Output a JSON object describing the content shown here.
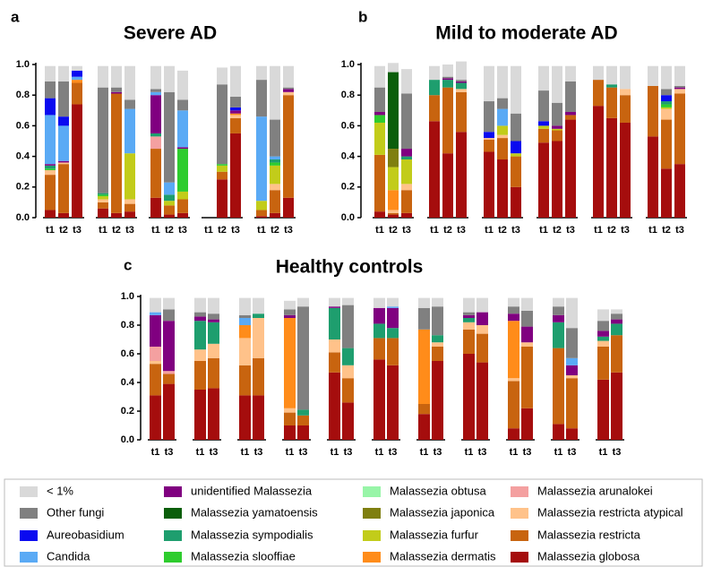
{
  "legend": [
    {
      "name": "< 1%",
      "color": "#d9d9d9"
    },
    {
      "name": "Other fungi",
      "color": "#808080"
    },
    {
      "name": "Aureobasidium",
      "color": "#0a0af0"
    },
    {
      "name": "Candida",
      "color": "#5aaaf5"
    },
    {
      "name": "unidentified Malassezia",
      "color": "#800080"
    },
    {
      "name": "Malassezia yamatoensis",
      "color": "#0b5e0b"
    },
    {
      "name": "Malassezia sympodialis",
      "color": "#1e9e6e"
    },
    {
      "name": "Malassezia slooffiae",
      "color": "#2ecc2e"
    },
    {
      "name": "Malassezia obtusa",
      "color": "#98f5a8"
    },
    {
      "name": "Malassezia japonica",
      "color": "#7f7f10"
    },
    {
      "name": "Malassezia furfur",
      "color": "#c2cc1a"
    },
    {
      "name": "Malassezia dermatis",
      "color": "#ff8c1a"
    },
    {
      "name": "Malassezia arunalokei",
      "color": "#f4a0a0"
    },
    {
      "name": "Malassezia restricta atypical",
      "color": "#ffc28a"
    },
    {
      "name": "Malassezia restricta",
      "color": "#c8640f"
    },
    {
      "name": "Malassezia globosa",
      "color": "#a50d0d"
    }
  ],
  "chart_data": [
    {
      "type": "bar",
      "stacked": true,
      "panel": "a",
      "title": "Severe AD",
      "categories": [
        "t1",
        "t2",
        "t3",
        "t1",
        "t2",
        "t3",
        "t1",
        "t2",
        "t3",
        "t1",
        "t2",
        "t3",
        "t1",
        "t2",
        "t3"
      ],
      "ylim": [
        0,
        1
      ],
      "yticks": [
        {
          "value": 0,
          "label": "0.0"
        },
        0.2,
        0.4,
        0.6,
        0.8,
        {
          "value": 1,
          "label": "1.0"
        }
      ],
      "series": [
        {
          "name": "Malassezia globosa",
          "values": [
            0.05,
            0.03,
            0.74,
            0.06,
            0.03,
            0.04,
            0.13,
            0.02,
            0.03,
            null,
            0.25,
            0.55,
            0.01,
            0.03,
            0.13
          ]
        },
        {
          "name": "Malassezia restricta",
          "values": [
            0.23,
            0.32,
            0.14,
            0.04,
            0.78,
            0.05,
            0.32,
            0.06,
            0.09,
            null,
            0.05,
            0.1,
            0.04,
            0.15,
            0.67
          ]
        },
        {
          "name": "Malassezia restricta atypical",
          "values": [
            0.03,
            0.01,
            0,
            0.02,
            0,
            0.03,
            0,
            0,
            0,
            null,
            0,
            0.02,
            0,
            0.04,
            0.02
          ]
        },
        {
          "name": "Malassezia dermatis",
          "values": [
            0,
            0,
            0.02,
            0,
            0,
            0,
            0,
            0,
            0,
            null,
            0,
            0.01,
            0,
            0,
            0
          ]
        },
        {
          "name": "Malassezia arunalokei",
          "values": [
            0,
            0,
            0,
            0,
            0,
            0,
            0.08,
            0,
            0,
            null,
            0,
            0,
            0,
            0,
            0
          ]
        },
        {
          "name": "Malassezia furfur",
          "values": [
            0,
            0,
            0,
            0.02,
            0,
            0.3,
            0,
            0.03,
            0.05,
            null,
            0.04,
            0,
            0.06,
            0.12,
            0
          ]
        },
        {
          "name": "Malassezia slooffiae",
          "values": [
            0.01,
            0,
            0,
            0.01,
            0,
            0,
            0,
            0,
            0.28,
            null,
            0.01,
            0,
            0,
            0.02,
            0
          ]
        },
        {
          "name": "Malassezia sympodialis",
          "values": [
            0.02,
            0,
            0,
            0.01,
            0,
            0,
            0.02,
            0.04,
            0,
            null,
            0,
            0,
            0,
            0.02,
            0
          ]
        },
        {
          "name": "unidentified Malassezia",
          "values": [
            0.01,
            0.01,
            0,
            0,
            0.01,
            0,
            0.25,
            0,
            0.01,
            null,
            0,
            0.02,
            0,
            0,
            0.02
          ]
        },
        {
          "name": "Candida",
          "values": [
            0.32,
            0.23,
            0.02,
            0,
            0,
            0.29,
            0.02,
            0.08,
            0.24,
            null,
            0,
            0,
            0.55,
            0.02,
            0
          ]
        },
        {
          "name": "Aureobasidium",
          "values": [
            0.11,
            0.06,
            0.04,
            0,
            0,
            0,
            0,
            0,
            0,
            null,
            0,
            0.02,
            0,
            0,
            0
          ]
        },
        {
          "name": "Other fungi",
          "values": [
            0.11,
            0.23,
            0,
            0.69,
            0.03,
            0.06,
            0.02,
            0.59,
            0.07,
            null,
            0.52,
            0.07,
            0.24,
            0.24,
            0.01
          ]
        },
        {
          "name": "< 1%",
          "values": [
            0.1,
            0.1,
            0.03,
            0.14,
            0.14,
            0.22,
            0.15,
            0.17,
            0.19,
            null,
            0.11,
            0.2,
            0.09,
            0.35,
            0.14
          ]
        }
      ]
    },
    {
      "type": "bar",
      "stacked": true,
      "panel": "b",
      "title": "Mild to moderate AD",
      "categories": [
        "t1",
        "t2",
        "t3",
        "t1",
        "t2",
        "t3",
        "t1",
        "t2",
        "t3",
        "t1",
        "t2",
        "t3",
        "t1",
        "t2",
        "t3",
        "t1",
        "t2",
        "t3"
      ],
      "ylim": [
        0,
        1
      ],
      "yticks": [
        {
          "value": 0,
          "label": "0.0"
        },
        0.2,
        0.4,
        0.6,
        0.8,
        {
          "value": 1,
          "label": "1.0"
        }
      ],
      "series": [
        {
          "name": "Malassezia globosa",
          "values": [
            0.04,
            0.02,
            0.03,
            0.63,
            0.42,
            0.56,
            0.43,
            0.38,
            0.2,
            0.49,
            0.5,
            0.64,
            0.73,
            0.65,
            0.62,
            0.53,
            0.32,
            0.35
          ]
        },
        {
          "name": "Malassezia restricta",
          "values": [
            0.37,
            0.01,
            0.15,
            0.17,
            0.43,
            0.26,
            0.08,
            0.14,
            0.2,
            0.09,
            0.07,
            0.03,
            0.17,
            0.2,
            0.18,
            0.33,
            0.32,
            0.46
          ]
        },
        {
          "name": "Malassezia restricta atypical",
          "values": [
            0,
            0.02,
            0.04,
            0,
            0,
            0.02,
            0.01,
            0.02,
            0,
            0,
            0,
            0,
            0,
            0,
            0.04,
            0,
            0.07,
            0.03
          ]
        },
        {
          "name": "Malassezia dermatis",
          "values": [
            0,
            0.13,
            0,
            0,
            0,
            0,
            0,
            0,
            0,
            0,
            0,
            0,
            0,
            0,
            0,
            0,
            0,
            0
          ]
        },
        {
          "name": "Malassezia furfur",
          "values": [
            0.21,
            0.15,
            0.16,
            0,
            0,
            0,
            0,
            0.06,
            0.02,
            0.02,
            0.01,
            0,
            0,
            0,
            0,
            0,
            0.01,
            0
          ]
        },
        {
          "name": "Malassezia japonica",
          "values": [
            0,
            0.12,
            0,
            0,
            0,
            0,
            0,
            0,
            0,
            0,
            0,
            0,
            0,
            0,
            0,
            0,
            0,
            0
          ]
        },
        {
          "name": "Malassezia yamatoensis",
          "values": [
            0,
            0.5,
            0,
            0,
            0,
            0,
            0,
            0,
            0,
            0,
            0,
            0,
            0,
            0,
            0,
            0,
            0,
            0
          ]
        },
        {
          "name": "Malassezia slooffiae",
          "values": [
            0.05,
            0,
            0,
            0,
            0,
            0,
            0,
            0,
            0,
            0,
            0,
            0,
            0,
            0,
            0,
            0,
            0.02,
            0
          ]
        },
        {
          "name": "Malassezia sympodialis",
          "values": [
            0,
            0,
            0.02,
            0.1,
            0.05,
            0.04,
            0,
            0,
            0,
            0,
            0,
            0,
            0,
            0.02,
            0,
            0,
            0.02,
            0
          ]
        },
        {
          "name": "unidentified Malassezia",
          "values": [
            0.02,
            0,
            0.05,
            0,
            0.01,
            0.01,
            0,
            0,
            0,
            0,
            0.02,
            0.02,
            0,
            0,
            0,
            0,
            0,
            0.01
          ]
        },
        {
          "name": "Candida",
          "values": [
            0,
            0,
            0,
            0,
            0,
            0,
            0,
            0.11,
            0,
            0,
            0,
            0,
            0,
            0,
            0,
            0,
            0,
            0
          ]
        },
        {
          "name": "Aureobasidium",
          "values": [
            0,
            0,
            0,
            0,
            0,
            0,
            0.04,
            0,
            0.08,
            0.03,
            0,
            0,
            0,
            0,
            0,
            0,
            0.04,
            0
          ]
        },
        {
          "name": "Other fungi",
          "values": [
            0.16,
            0,
            0.36,
            0,
            0.01,
            0.01,
            0.2,
            0.07,
            0.18,
            0.2,
            0.15,
            0.2,
            0,
            0,
            0,
            0,
            0.04,
            0.01
          ]
        },
        {
          "name": "< 1%",
          "values": [
            0.14,
            0.06,
            0.16,
            0.09,
            0.08,
            0.12,
            0.23,
            0.21,
            0.31,
            0.16,
            0.24,
            0.1,
            0.09,
            0.12,
            0.15,
            0.13,
            0.15,
            0.13
          ]
        }
      ]
    },
    {
      "type": "bar",
      "stacked": true,
      "panel": "c",
      "title": "Healthy controls",
      "categories": [
        "t1",
        "t3",
        "t1",
        "t3",
        "t1",
        "t3",
        "t1",
        "t3",
        "t1",
        "t3",
        "t1",
        "t3",
        "t1",
        "t3",
        "t1",
        "t3",
        "t1",
        "t3",
        "t1",
        "t3",
        "t1",
        "t3"
      ],
      "ylim": [
        0,
        1
      ],
      "yticks": [
        {
          "value": 0,
          "label": "0.0"
        },
        0.2,
        0.4,
        0.6,
        0.8,
        {
          "value": 1,
          "label": "1.0"
        }
      ],
      "series": [
        {
          "name": "Malassezia globosa",
          "values": [
            0.31,
            0.39,
            0.35,
            0.36,
            0.31,
            0.31,
            0.1,
            0.1,
            0.47,
            0.26,
            0.56,
            0.52,
            0.18,
            0.55,
            0.6,
            0.54,
            0.08,
            0.22,
            0.11,
            0.08,
            0.42,
            0.47
          ]
        },
        {
          "name": "Malassezia restricta",
          "values": [
            0.22,
            0.07,
            0.2,
            0.21,
            0.21,
            0.26,
            0.09,
            0.07,
            0.14,
            0.17,
            0.15,
            0.19,
            0.07,
            0.1,
            0.17,
            0.2,
            0.33,
            0.43,
            0.53,
            0.35,
            0.23,
            0.26
          ]
        },
        {
          "name": "Malassezia restricta atypical",
          "values": [
            0.02,
            0,
            0.08,
            0.1,
            0.19,
            0.28,
            0.03,
            0,
            0.09,
            0.09,
            0,
            0,
            0,
            0.03,
            0.05,
            0.06,
            0.02,
            0.03,
            0,
            0.02,
            0.04,
            0
          ]
        },
        {
          "name": "Malassezia dermatis",
          "values": [
            0,
            0,
            0,
            0,
            0.09,
            0,
            0.63,
            0,
            0,
            0,
            0,
            0,
            0.52,
            0,
            0,
            0,
            0.4,
            0,
            0,
            0,
            0,
            0
          ]
        },
        {
          "name": "Malassezia arunalokei",
          "values": [
            0.1,
            0.02,
            0,
            0,
            0,
            0,
            0,
            0,
            0,
            0,
            0,
            0,
            0,
            0,
            0,
            0,
            0,
            0,
            0,
            0,
            0,
            0
          ]
        },
        {
          "name": "Malassezia sympodialis",
          "values": [
            0,
            0,
            0.2,
            0.15,
            0,
            0.03,
            0,
            0.04,
            0.22,
            0.12,
            0.1,
            0.07,
            0,
            0.05,
            0.03,
            0,
            0,
            0,
            0.18,
            0,
            0.03,
            0.08
          ]
        },
        {
          "name": "unidentified Malassezia",
          "values": [
            0.22,
            0.35,
            0.03,
            0.02,
            0,
            0,
            0.02,
            0,
            0.01,
            0,
            0.11,
            0.14,
            0,
            0,
            0.02,
            0.09,
            0.05,
            0.11,
            0.05,
            0.07,
            0.04,
            0.03
          ]
        },
        {
          "name": "Candida",
          "values": [
            0.02,
            0,
            0,
            0,
            0.05,
            0,
            0,
            0,
            0,
            0,
            0,
            0.01,
            0,
            0,
            0,
            0,
            0,
            0,
            0,
            0.05,
            0,
            0
          ]
        },
        {
          "name": "Other fungi",
          "values": [
            0,
            0.08,
            0.03,
            0.04,
            0.02,
            0,
            0.04,
            0.72,
            0,
            0.3,
            0,
            0,
            0.15,
            0.2,
            0.02,
            0,
            0.05,
            0.11,
            0.06,
            0.21,
            0.07,
            0.04
          ]
        },
        {
          "name": "< 1%",
          "values": [
            0.1,
            0.08,
            0.1,
            0.11,
            0.12,
            0.11,
            0.06,
            0.06,
            0.06,
            0.05,
            0.07,
            0.06,
            0.07,
            0.06,
            0.1,
            0.1,
            0.06,
            0.09,
            0.06,
            0.21,
            0.08,
            0.03
          ]
        }
      ]
    }
  ]
}
